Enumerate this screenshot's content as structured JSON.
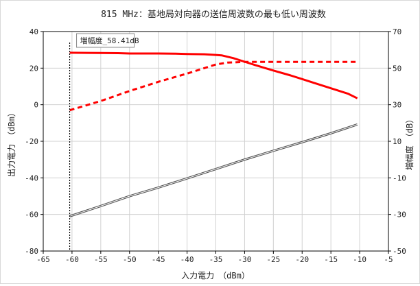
{
  "chart_data": {
    "type": "line",
    "title": "815 MHz：基地局対向器の送信周波数の最も低い周波数",
    "xlabel": "入力電力　（dBm）",
    "ylabel_left": "出力電力　（dBm）",
    "ylabel_right": "増幅度　（dB）",
    "xlim": [
      -65,
      -5
    ],
    "ylim_left": [
      -80,
      40
    ],
    "ylim_right": [
      -50,
      70
    ],
    "x_ticks": [
      -65,
      -60,
      -55,
      -50,
      -45,
      -40,
      -35,
      -30,
      -25,
      -20,
      -15,
      -10,
      -5
    ],
    "y_ticks_left": [
      -80,
      -60,
      -40,
      -20,
      0,
      20,
      40
    ],
    "y_ticks_right": [
      -50,
      -30,
      -10,
      10,
      30,
      50,
      70
    ],
    "grid": true,
    "annotation": {
      "text": "増幅度_58.41dB",
      "x": -60.4
    },
    "series": [
      {
        "axis": "left",
        "style": "solid",
        "color": "#ff0000",
        "x": [
          -60.4,
          -55,
          -52,
          -50,
          -45,
          -42,
          -40,
          -37,
          -35,
          -34,
          -32,
          -30,
          -28,
          -25,
          -22,
          -20,
          -18,
          -15,
          -12,
          -10.4
        ],
        "y": [
          28.4,
          28.3,
          28.2,
          28.0,
          28.0,
          27.9,
          27.7,
          27.6,
          27.2,
          27.0,
          25.5,
          23.5,
          21.5,
          18.7,
          16.0,
          14.0,
          12.0,
          9.0,
          6.0,
          3.5
        ]
      },
      {
        "axis": "right",
        "style": "dashed",
        "color": "#ff0000",
        "x": [
          -60.4,
          -55,
          -50,
          -45,
          -40,
          -35,
          -33,
          -30,
          -25,
          -20,
          -15,
          -10.4
        ],
        "y": [
          27.0,
          32.0,
          37.5,
          42.5,
          47.0,
          52.0,
          53.0,
          53.4,
          53.4,
          53.4,
          53.4,
          53.4
        ]
      },
      {
        "axis": "left",
        "style": "solid",
        "color": "#555555",
        "x": [
          -60.4,
          -55,
          -50,
          -45,
          -40,
          -35,
          -30,
          -25,
          -20,
          -15,
          -10.4
        ],
        "y": [
          -61.0,
          -55.4,
          -50.0,
          -45.3,
          -40.3,
          -35.2,
          -30.0,
          -25.2,
          -20.5,
          -15.6,
          -10.8
        ]
      }
    ]
  }
}
